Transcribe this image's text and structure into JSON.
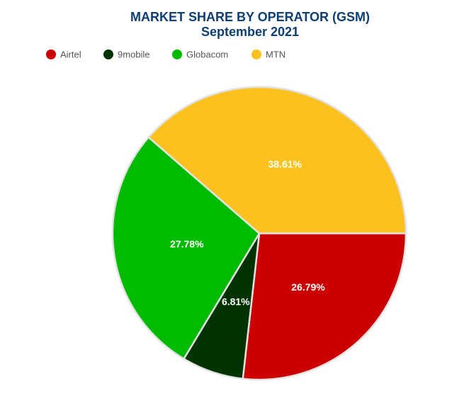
{
  "chart_data": {
    "type": "pie",
    "title": "MARKET SHARE BY OPERATOR (GSM)",
    "subtitle": "September 2021",
    "categories": [
      "Airtel",
      "9mobile",
      "Globacom",
      "MTN"
    ],
    "values": [
      26.79,
      6.81,
      27.78,
      38.61
    ],
    "value_labels": [
      "26.79%",
      "6.81%",
      "27.78%",
      "38.61%"
    ],
    "colors": [
      "#cc0000",
      "#003300",
      "#00bb00",
      "#fbc21f"
    ],
    "legend": "top-left"
  }
}
